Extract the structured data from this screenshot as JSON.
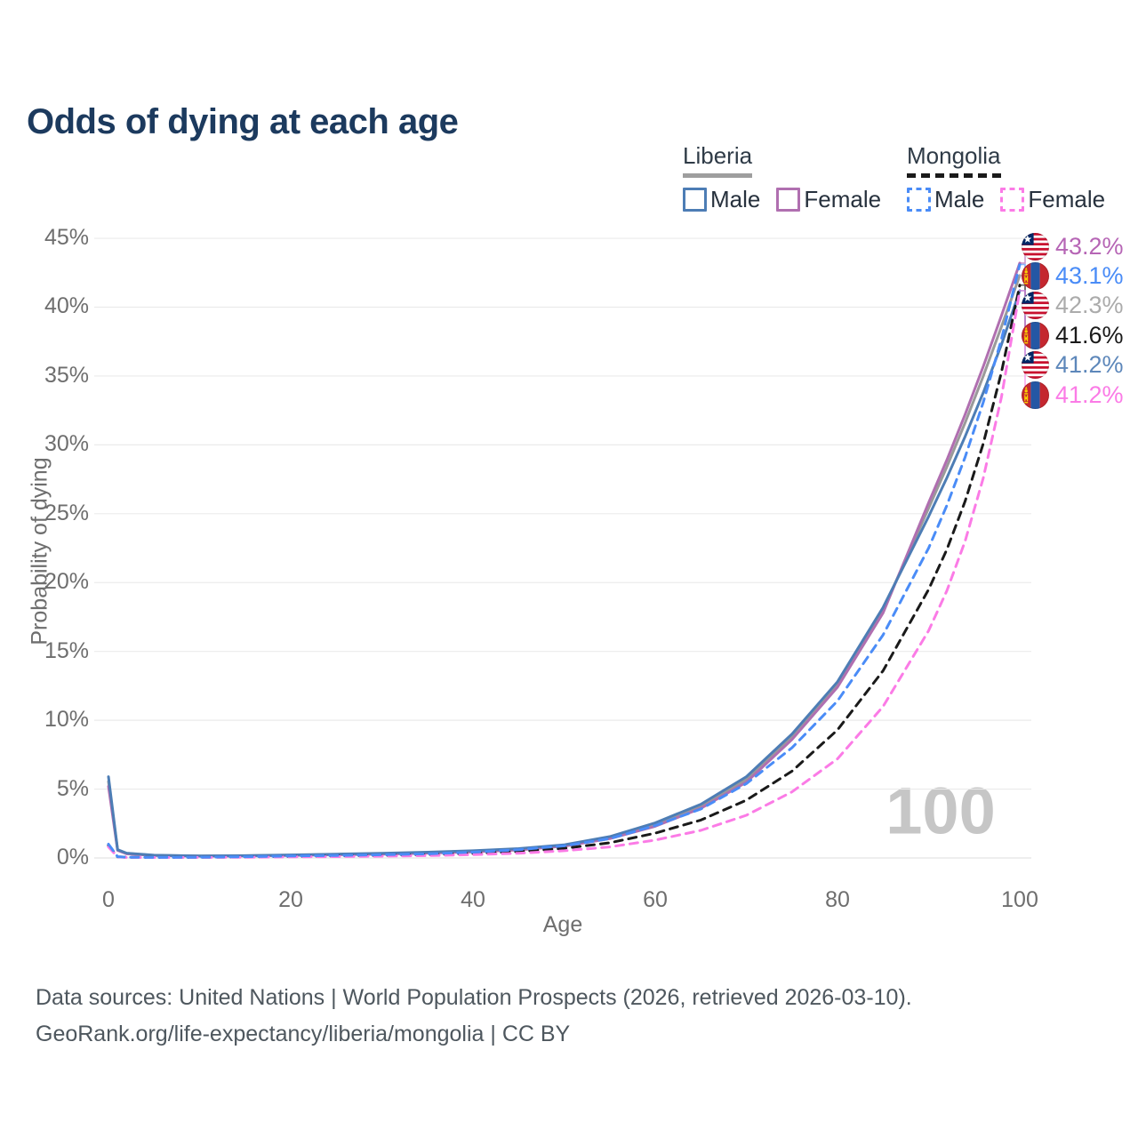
{
  "page": {
    "title": "Odds of dying at each age",
    "watermark_age": "100",
    "footer_line1": "Data sources: United Nations | World Population Prospects (2026, retrieved 2026-03-10).",
    "footer_line2": "GeoRank.org/life-expectancy/liberia/mongolia | CC BY"
  },
  "legend": {
    "groups": [
      {
        "label": "Liberia",
        "underline": "solid",
        "underline_color": "#9e9e9e",
        "items": [
          {
            "label": "Male",
            "color": "#4d7db5",
            "dashed": false
          },
          {
            "label": "Female",
            "color": "#b06fb0",
            "dashed": false
          }
        ]
      },
      {
        "label": "Mongolia",
        "underline": "dashed",
        "underline_color": "#1a1a1a",
        "items": [
          {
            "label": "Male",
            "color": "#4a8cf7",
            "dashed": true
          },
          {
            "label": "Female",
            "color": "#fb7be6",
            "dashed": true
          }
        ]
      }
    ]
  },
  "chart_data": {
    "type": "line",
    "title": "Odds of dying at each age",
    "xlabel": "Age",
    "ylabel": "Probability of dying",
    "xlim": [
      0,
      100
    ],
    "ylim": [
      0,
      45
    ],
    "x_ticks": [
      0,
      20,
      40,
      60,
      80,
      100
    ],
    "y_ticks": [
      0,
      5,
      10,
      15,
      20,
      25,
      30,
      35,
      40,
      45
    ],
    "y_tick_suffix": "%",
    "grid": "horizontal",
    "legend_position": "top-right",
    "x": [
      0,
      1,
      2,
      5,
      10,
      15,
      20,
      25,
      30,
      35,
      40,
      45,
      50,
      55,
      60,
      65,
      70,
      75,
      80,
      85,
      90,
      92,
      94,
      96,
      98,
      100
    ],
    "series": [
      {
        "key": "liberia-both",
        "name": "Liberia (both sexes)",
        "color": "#9a9a9a",
        "dashed": false,
        "values": [
          5.55,
          0.58,
          0.33,
          0.19,
          0.14,
          0.16,
          0.2,
          0.26,
          0.31,
          0.39,
          0.48,
          0.63,
          0.9,
          1.48,
          2.42,
          3.75,
          5.7,
          8.8,
          12.6,
          18.0,
          25.4,
          28.4,
          31.6,
          35.0,
          38.6,
          42.3
        ]
      },
      {
        "key": "liberia-female",
        "name": "Liberia Female",
        "color": "#b06fb0",
        "dashed": false,
        "values": [
          5.2,
          0.55,
          0.3,
          0.18,
          0.13,
          0.14,
          0.18,
          0.23,
          0.28,
          0.35,
          0.44,
          0.58,
          0.85,
          1.4,
          2.3,
          3.6,
          5.5,
          8.6,
          12.4,
          17.8,
          25.8,
          28.9,
          32.2,
          35.7,
          39.4,
          43.2
        ]
      },
      {
        "key": "liberia-male",
        "name": "Liberia Male",
        "color": "#4d7db5",
        "dashed": false,
        "values": [
          5.9,
          0.6,
          0.35,
          0.2,
          0.15,
          0.17,
          0.22,
          0.28,
          0.34,
          0.42,
          0.52,
          0.68,
          0.95,
          1.55,
          2.55,
          3.9,
          5.9,
          9.0,
          12.8,
          18.2,
          24.8,
          27.6,
          30.6,
          33.8,
          37.3,
          41.2
        ]
      },
      {
        "key": "mongolia-both",
        "name": "Mongolia (both sexes)",
        "color": "#1a1a1a",
        "dashed": true,
        "values": [
          0.9,
          0.08,
          0.05,
          0.035,
          0.045,
          0.07,
          0.11,
          0.14,
          0.18,
          0.24,
          0.33,
          0.47,
          0.7,
          1.1,
          1.8,
          2.75,
          4.2,
          6.3,
          9.3,
          13.6,
          19.5,
          22.4,
          25.9,
          30.1,
          35.3,
          41.6
        ]
      },
      {
        "key": "mongolia-female",
        "name": "Mongolia Female",
        "color": "#fb7be6",
        "dashed": true,
        "values": [
          0.8,
          0.07,
          0.04,
          0.03,
          0.04,
          0.05,
          0.08,
          0.1,
          0.13,
          0.17,
          0.24,
          0.34,
          0.52,
          0.8,
          1.3,
          2.0,
          3.1,
          4.8,
          7.2,
          11.0,
          16.5,
          19.4,
          23.0,
          27.6,
          33.5,
          41.2
        ]
      },
      {
        "key": "mongolia-male",
        "name": "Mongolia Male",
        "color": "#4a8cf7",
        "dashed": true,
        "values": [
          1.0,
          0.09,
          0.05,
          0.04,
          0.05,
          0.09,
          0.14,
          0.18,
          0.23,
          0.3,
          0.42,
          0.6,
          0.88,
          1.4,
          2.35,
          3.55,
          5.4,
          8.0,
          11.4,
          16.2,
          22.5,
          25.6,
          29.1,
          33.1,
          37.7,
          43.1
        ]
      }
    ],
    "end_labels": [
      {
        "text": "43.2%",
        "value": 43.2,
        "series": "Liberia Female",
        "flag": "liberia",
        "color": "#b665b5"
      },
      {
        "text": "43.1%",
        "value": 43.1,
        "series": "Mongolia Male",
        "flag": "mongolia",
        "color": "#4a8cf7"
      },
      {
        "text": "42.3%",
        "value": 42.3,
        "series": "Liberia (both sexes)",
        "flag": "liberia",
        "color": "#ababab"
      },
      {
        "text": "41.6%",
        "value": 41.6,
        "series": "Mongolia (both sexes)",
        "flag": "mongolia",
        "color": "#1a1a1a"
      },
      {
        "text": "41.2%",
        "value": 41.2,
        "series": "Liberia Male",
        "flag": "liberia",
        "color": "#5d87ba"
      },
      {
        "text": "41.2%",
        "value": 41.2,
        "series": "Mongolia Female",
        "flag": "mongolia",
        "color": "#fb7be6"
      }
    ]
  }
}
